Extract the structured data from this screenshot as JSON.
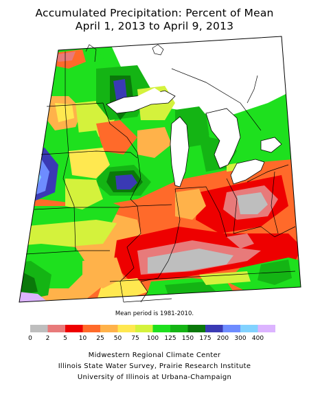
{
  "header": {
    "title": "Accumulated Precipitation: Percent of Mean",
    "subtitle": "April 1, 2013 to April 9, 2013"
  },
  "map": {
    "region": "Midwest United States",
    "mean_note": "Mean period is 1981-2010."
  },
  "legend": {
    "labels": [
      "0",
      "2",
      "5",
      "10",
      "25",
      "50",
      "75",
      "100",
      "125",
      "150",
      "175",
      "200",
      "300",
      "400"
    ],
    "colors": [
      "#bebebe",
      "#e87a7a",
      "#ee0000",
      "#ff6a2a",
      "#ffb24a",
      "#ffe850",
      "#d4f23c",
      "#1ee01e",
      "#14b414",
      "#0a780a",
      "#3a3ab4",
      "#6e8cff",
      "#82d2ff",
      "#dcb4ff"
    ]
  },
  "credits": {
    "line1": "Midwestern Regional Climate Center",
    "line2": "Illinois State Water Survey, Prairie Research Institute",
    "line3": "University of Illinois at Urbana-Champaign"
  }
}
